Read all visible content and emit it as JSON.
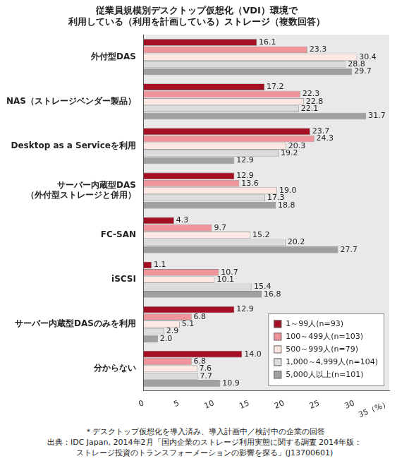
{
  "chart_data": {
    "type": "bar",
    "orientation": "horizontal",
    "title": [
      "従業員規模別デスクトップ仮想化（VDI）環境で",
      "利用している（利用を計画している）ストレージ（複数回答）"
    ],
    "categories": [
      "外付型DAS",
      "NAS（ストレージベンダー製品）",
      "Desktop as a Serviceを利用",
      "サーバー内蔵型DAS\n（外付型ストレージと併用）",
      "FC-SAN",
      "iSCSI",
      "サーバー内蔵型DASのみを利用",
      "分からない"
    ],
    "series": [
      {
        "name": "1～99人(n=93)",
        "color": "#a50f23",
        "values": [
          16.1,
          17.2,
          23.7,
          12.9,
          4.3,
          1.1,
          12.9,
          14.0
        ],
        "value_labels": [
          "16.1",
          "17.2",
          "23.7",
          "12.9",
          "4.3",
          "1.1",
          "12.9",
          "14.0"
        ]
      },
      {
        "name": "100～499人(n=103)",
        "color": "#f0949c",
        "values": [
          23.3,
          22.3,
          24.3,
          13.6,
          9.7,
          10.7,
          6.8,
          6.8
        ],
        "value_labels": [
          "23.3",
          "22.3",
          "24.3",
          "13.6",
          "9.7",
          "10.7",
          "6.8",
          "6.8"
        ]
      },
      {
        "name": "500～999人(n=79)",
        "color": "#fde8e4",
        "values": [
          30.4,
          22.8,
          20.3,
          19.0,
          15.2,
          10.1,
          5.1,
          7.6
        ],
        "value_labels": [
          "30.4",
          "22.8",
          "20.3",
          "19.0",
          "15.2",
          "10.1",
          "5.1",
          "7.6"
        ]
      },
      {
        "name": "1,000～4,999人(n=104)",
        "color": "#dcdcdc",
        "values": [
          28.8,
          22.1,
          19.2,
          17.3,
          20.2,
          15.4,
          2.9,
          7.7
        ],
        "value_labels": [
          "28.8",
          "22.1",
          "19.2",
          "17.3",
          "20.2",
          "15.4",
          "2.9",
          "7.7"
        ]
      },
      {
        "name": "5,000人以上(n=101)",
        "color": "#a0a0a0",
        "values": [
          29.7,
          31.7,
          12.9,
          18.8,
          27.7,
          16.8,
          2.0,
          10.9
        ],
        "value_labels": [
          "29.7",
          "31.7",
          "12.9",
          "18.8",
          "27.7",
          "16.8",
          "2.0",
          "10.9"
        ]
      }
    ],
    "xlim": [
      0,
      35
    ],
    "xticks": [
      0,
      5,
      10,
      15,
      20,
      25,
      30,
      {
        "value": 35,
        "label": "35（%）"
      }
    ],
    "grid": false,
    "legend": "bottom-right",
    "data_labels": true,
    "footnote": [
      "＊デスクトップ仮想化を導入済み、導入計画中／検討中の企業の回答",
      "出典：IDC Japan, 2014年2月「国内企業のストレージ利用実態に関する調査 2014年版：",
      "ストレージ投資のトランスフォーメーションの影響を探る」(J13700601)"
    ]
  }
}
